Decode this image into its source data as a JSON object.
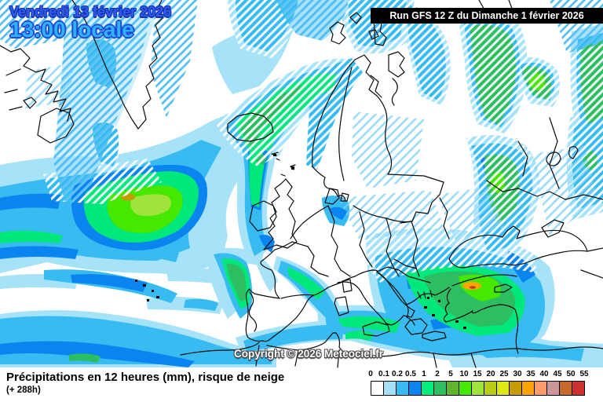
{
  "header": {
    "date_line": "Vendredi 13 février 2026",
    "time_line": "13:00 locale",
    "run_info": "Run GFS 12 Z du Dimanche 1 février 2026",
    "date_color": "#2B5CF0",
    "time_color": "#30B2F8"
  },
  "map": {
    "copyright": "Copyright © 2026 Meteociel.fr",
    "region": "Europe / North Atlantic",
    "precip_palette": {
      "light": "#A6E2F8",
      "moderate": "#38BBF0",
      "strong": "#0A85F0",
      "green1": "#00E87C",
      "green2": "#2EBE62",
      "green3": "#46E800",
      "yellow_green": "#9FE43C",
      "olive": "#C69B06",
      "orange": "#FFA405"
    }
  },
  "footer": {
    "caption": "Précipitations en 12 heures (mm), risque de neige",
    "lead_time": "(+ 288h)"
  },
  "legend": {
    "values": [
      "0",
      "0.1",
      "0.2",
      "0.5",
      "1",
      "2",
      "5",
      "10",
      "15",
      "20",
      "25",
      "30",
      "35",
      "40",
      "45",
      "50",
      "55"
    ],
    "colors": [
      "#FFFFFF",
      "#A5E1F6",
      "#38BBF0",
      "#0A85F0",
      "#00EC7D",
      "#2EBE62",
      "#5FB62D",
      "#46E800",
      "#9FE43C",
      "#B7CC14",
      "#DCE816",
      "#C69B06",
      "#FFA405",
      "#FC9C6B",
      "#C99799",
      "#C66A2B",
      "#CC3232"
    ]
  }
}
